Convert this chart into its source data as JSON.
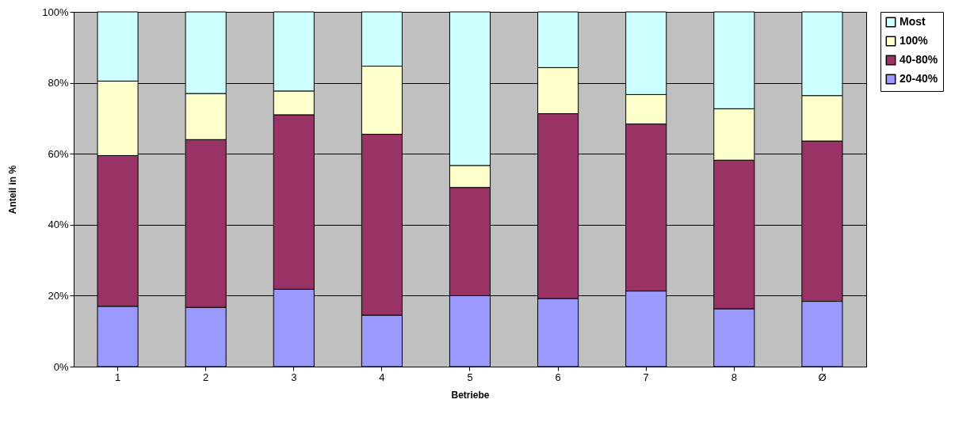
{
  "chart_data": {
    "type": "bar",
    "stacked": true,
    "xlabel": "Betriebe",
    "ylabel": "Anteil in %",
    "categories": [
      "1",
      "2",
      "3",
      "4",
      "5",
      "6",
      "7",
      "8",
      "Ø"
    ],
    "series": [
      {
        "name": "20-40%",
        "color": "#9999ff",
        "values": [
          17,
          16.7,
          21.8,
          14.5,
          20,
          19.2,
          21.3,
          16.3,
          18.4
        ]
      },
      {
        "name": "40-80%",
        "color": "#993366",
        "values": [
          42.5,
          47.3,
          49.2,
          51,
          30.5,
          52.1,
          47.1,
          41.9,
          45.2
        ]
      },
      {
        "name": "100%",
        "color": "#ffffcc",
        "values": [
          21,
          13,
          6.7,
          19.2,
          6.2,
          13,
          8.3,
          14.5,
          12.8
        ]
      },
      {
        "name": "Most",
        "color": "#ccffff",
        "values": [
          19.5,
          23,
          22.3,
          15.3,
          43.3,
          15.7,
          23.3,
          27.3,
          23.6
        ]
      }
    ],
    "ylim": [
      0,
      100
    ],
    "yticks": [
      {
        "value": 0,
        "label": "0%"
      },
      {
        "value": 20,
        "label": "20%"
      },
      {
        "value": 40,
        "label": "40%"
      },
      {
        "value": 60,
        "label": "60%"
      },
      {
        "value": 80,
        "label": "80%"
      },
      {
        "value": 100,
        "label": "100%"
      }
    ],
    "grid": "y",
    "legend": "right"
  }
}
